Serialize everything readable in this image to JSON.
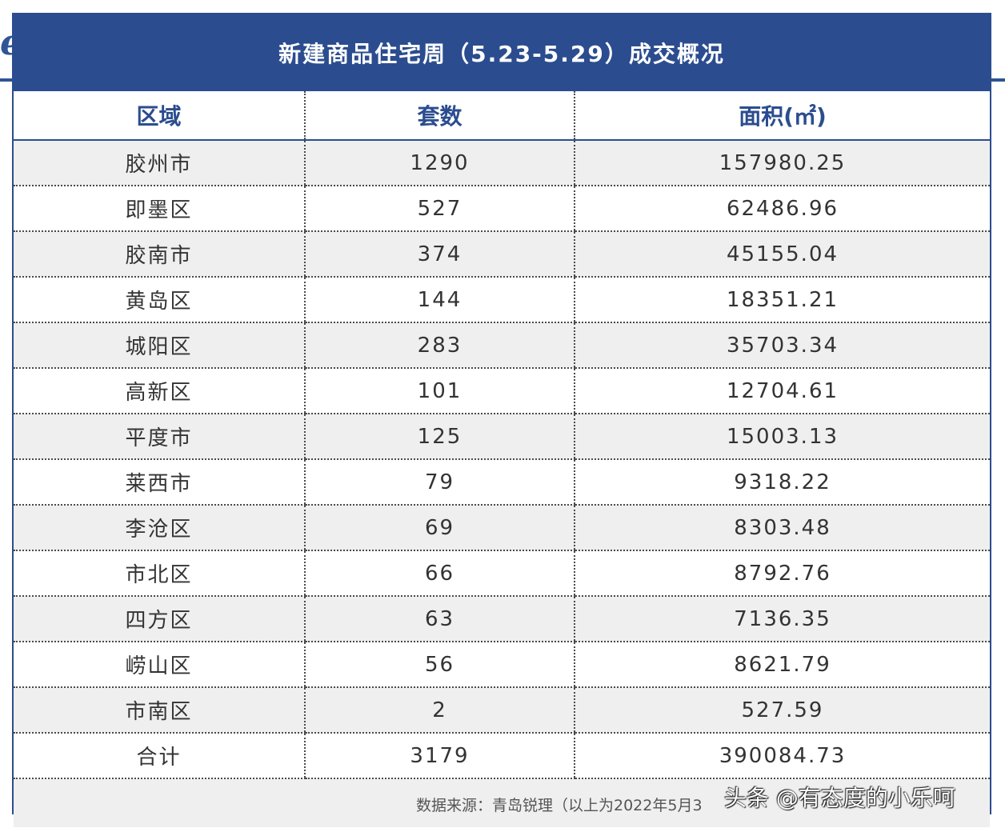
{
  "table": {
    "title": "新建商品住宅周（5.23-5.29）成交概况",
    "headers": [
      "区域",
      "套数",
      "面积(㎡)"
    ],
    "rows": [
      [
        "胶州市",
        "1290",
        "157980.25"
      ],
      [
        "即墨区",
        "527",
        "62486.96"
      ],
      [
        "胶南市",
        "374",
        "45155.04"
      ],
      [
        "黄岛区",
        "144",
        "18351.21"
      ],
      [
        "城阳区",
        "283",
        "35703.34"
      ],
      [
        "高新区",
        "101",
        "12704.61"
      ],
      [
        "平度市",
        "125",
        "15003.13"
      ],
      [
        "莱西市",
        "79",
        "9318.22"
      ],
      [
        "李沧区",
        "69",
        "8303.48"
      ],
      [
        "市北区",
        "66",
        "8792.76"
      ],
      [
        "四方区",
        "63",
        "7136.35"
      ],
      [
        "崂山区",
        "56",
        "8621.79"
      ],
      [
        "市南区",
        "2",
        "527.59"
      ],
      [
        "合计",
        "3179",
        "390084.73"
      ]
    ],
    "source": "数据来源：青岛锐理（以上为2022年5月3"
  },
  "watermark": "头条 @有态度的小乐呵",
  "colors": {
    "header_blue": "#2b4d8f",
    "row_gray": "#efefef"
  }
}
